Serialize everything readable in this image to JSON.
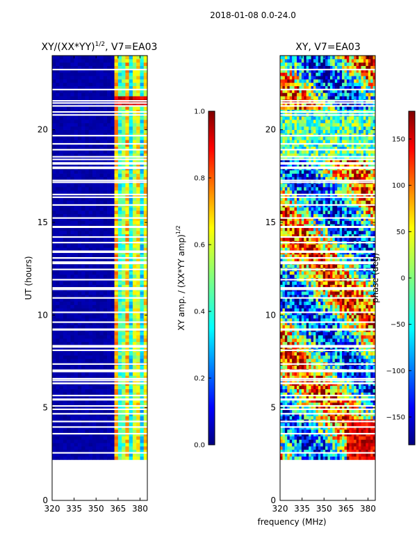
{
  "suptitle": "2018-01-08 0.0-24.0",
  "xlabel": "frequency (MHz)",
  "colors": {
    "background": "#ffffff",
    "axis": "#000000",
    "dark_blue": "#00007f",
    "dark_red": "#7f0000"
  },
  "chart_data": [
    {
      "type": "heatmap",
      "title_main": "XY/(XX*YY)",
      "title_sup": "1/2",
      "title_tail": ", V7=EA03",
      "ylabel": "UT (hours)",
      "xlim": [
        320,
        385
      ],
      "ylim": [
        0,
        24
      ],
      "xticks": [
        320,
        335,
        350,
        365,
        380
      ],
      "yticks": [
        0,
        5,
        10,
        15,
        20
      ],
      "data_yrange": [
        2.2,
        24
      ],
      "colormap": "jet",
      "colorbar": {
        "label_main": "XY amp. / (XX*YY amp)",
        "label_sup": "1/2",
        "range": [
          0.0,
          1.0
        ],
        "ticks": [
          "0.0",
          "0.2",
          "0.4",
          "0.6",
          "0.8",
          "1.0"
        ]
      }
    },
    {
      "type": "heatmap",
      "title": "XY, V7=EA03",
      "xlim": [
        320,
        385
      ],
      "ylim": [
        0,
        24
      ],
      "xticks": [
        320,
        335,
        350,
        365,
        380
      ],
      "yticks": [
        0,
        5,
        10,
        15,
        20
      ],
      "data_yrange": [
        2.2,
        24
      ],
      "colormap": "jet",
      "colorbar": {
        "label": "phase (deg)",
        "range": [
          -180,
          180
        ],
        "ticks": [
          "150",
          "100",
          "50",
          "0",
          "−50",
          "−100",
          "−150"
        ],
        "tick_values": [
          150,
          100,
          50,
          0,
          -50,
          -100,
          -150
        ]
      }
    }
  ]
}
